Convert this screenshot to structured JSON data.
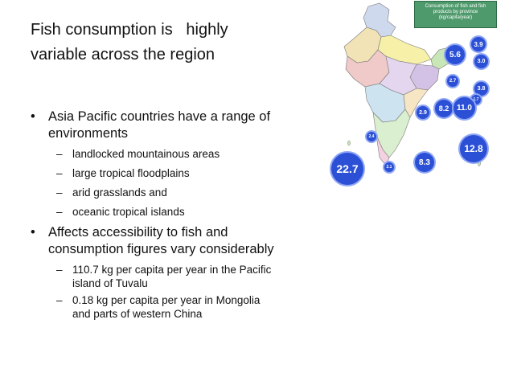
{
  "slide": {
    "title_lines": [
      "Fish consumption is   highly",
      "variable across the region"
    ],
    "bullets": [
      {
        "text": "Asia Pacific countries have a range of environments",
        "subs": [
          "landlocked mountainous areas",
          "large tropical floodplains",
          "arid grasslands and",
          "oceanic tropical islands"
        ]
      },
      {
        "text": "Affects accessibility to fish and consumption figures vary considerably",
        "subs": [
          "110.7 kg per capita per year in the Pacific island of Tuvalu",
          "0.18 kg per capita per year in Mongolia and parts of western China"
        ]
      }
    ],
    "bullet_symbol": "•",
    "dash_symbol": "–"
  },
  "map": {
    "legend": [
      "Consumption of fish and fish",
      "products by province",
      "(kg/capita/year)"
    ],
    "circle_values": [
      "3.9",
      "5.6",
      "3.0",
      "2.7",
      "3.8",
      "1.7",
      "8.2",
      "11.0",
      "2.9",
      "12.8",
      "22.7",
      "8.3",
      "2.4",
      "2.1"
    ],
    "colors": {
      "circle": "#2b50d6",
      "legend_bg": "#4f9a6c",
      "sea": "#ffffff"
    }
  }
}
